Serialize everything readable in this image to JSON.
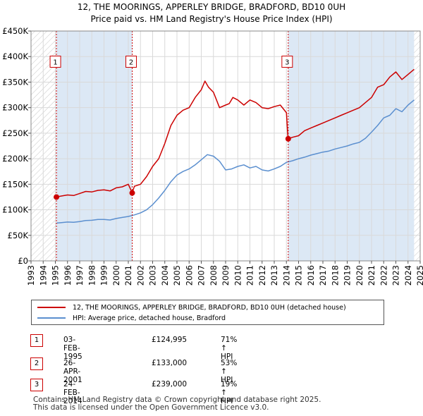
{
  "title_line1": "12, THE MOORINGS, APPERLEY BRIDGE, BRADFORD, BD10 0UH",
  "title_line2": "Price paid vs. HM Land Registry's House Price Index (HPI)",
  "legend": {
    "property_label": "12, THE MOORINGS, APPERLEY BRIDGE, BRADFORD, BD10 0UH (detached house)",
    "hpi_label": "HPI: Average price, detached house, Bradford"
  },
  "transactions": [
    {
      "num": "1",
      "date": "03-FEB-1995",
      "price": "£124,995",
      "hpi": "71% ↑ HPI"
    },
    {
      "num": "2",
      "date": "26-APR-2001",
      "price": "£133,000",
      "hpi": "53% ↑ HPI"
    },
    {
      "num": "3",
      "date": "24-FEB-2014",
      "price": "£239,000",
      "hpi": "19% ↑ HPI"
    }
  ],
  "footer_line1": "Contains HM Land Registry data © Crown copyright and database right 2025.",
  "footer_line2": "This data is licensed under the Open Government Licence v3.0.",
  "colors": {
    "property": "#cc0000",
    "hpi": "#5b8fcf",
    "shade": "#dce8f5",
    "grid": "#d9d9d9"
  },
  "chart_data": {
    "type": "line",
    "xlim": [
      1993,
      2025
    ],
    "ylim": [
      0,
      450000
    ],
    "y_ticks": [
      0,
      50000,
      100000,
      150000,
      200000,
      250000,
      300000,
      350000,
      400000,
      450000
    ],
    "y_tick_labels": [
      "£0",
      "£50K",
      "£100K",
      "£150K",
      "£200K",
      "£250K",
      "£300K",
      "£350K",
      "£400K",
      "£450K"
    ],
    "x_ticks": [
      1993,
      1994,
      1995,
      1996,
      1997,
      1998,
      1999,
      2000,
      2001,
      2002,
      2003,
      2004,
      2005,
      2006,
      2007,
      2008,
      2009,
      2010,
      2011,
      2012,
      2013,
      2014,
      2015,
      2016,
      2017,
      2018,
      2019,
      2020,
      2021,
      2022,
      2023,
      2024,
      2025
    ],
    "x_tick_labels": [
      "1993",
      "1994",
      "1995",
      "1996",
      "1997",
      "1998",
      "1999",
      "2000",
      "2001",
      "2002",
      "2003",
      "2004",
      "2005",
      "2006",
      "2007",
      "2008",
      "2009",
      "2010",
      "2011",
      "2012",
      "2013",
      "2014",
      "2015",
      "2016",
      "2017",
      "2018",
      "2019",
      "2020",
      "2021",
      "2022",
      "2023",
      "2024",
      "2025"
    ],
    "hatch_ranges": [
      [
        1993,
        1995.09
      ],
      [
        2024.5,
        2025
      ]
    ],
    "shade_ranges": [
      [
        1995.09,
        2001.32
      ],
      [
        2014.15,
        2024.5
      ]
    ],
    "series": [
      {
        "name": "12, THE MOORINGS, APPERLEY BRIDGE, BRADFORD, BD10 0UH (detached house)",
        "x": [
          1995.09,
          1995.5,
          1996,
          1996.5,
          1997,
          1997.5,
          1998,
          1998.5,
          1999,
          1999.5,
          2000,
          2000.5,
          2001,
          2001.32,
          2001.5,
          2002,
          2002.5,
          2003,
          2003.5,
          2004,
          2004.5,
          2005,
          2005.5,
          2006,
          2006.5,
          2007,
          2007.3,
          2007.6,
          2008,
          2008.5,
          2009,
          2009.3,
          2009.6,
          2010,
          2010.5,
          2011,
          2011.5,
          2012,
          2012.5,
          2013,
          2013.5,
          2014,
          2014.1,
          2014.15,
          2014.5,
          2015,
          2015.5,
          2016,
          2016.5,
          2017,
          2017.5,
          2018,
          2018.5,
          2019,
          2019.5,
          2020,
          2020.5,
          2021,
          2021.5,
          2022,
          2022.5,
          2023,
          2023.5,
          2024,
          2024.5
        ],
        "values": [
          124995,
          127000,
          129000,
          128000,
          132000,
          136000,
          135000,
          138000,
          139000,
          137000,
          143000,
          145000,
          150000,
          133000,
          146000,
          150000,
          165000,
          185000,
          200000,
          230000,
          265000,
          285000,
          295000,
          300000,
          320000,
          335000,
          352000,
          340000,
          330000,
          300000,
          305000,
          308000,
          320000,
          315000,
          305000,
          315000,
          310000,
          300000,
          298000,
          302000,
          305000,
          290000,
          250000,
          239000,
          242000,
          245000,
          255000,
          260000,
          265000,
          270000,
          275000,
          280000,
          285000,
          290000,
          295000,
          300000,
          310000,
          320000,
          340000,
          345000,
          360000,
          370000,
          355000,
          365000,
          375000
        ]
      },
      {
        "name": "HPI: Average price, detached house, Bradford",
        "x": [
          1995.09,
          1995.5,
          1996,
          1996.5,
          1997,
          1997.5,
          1998,
          1998.5,
          1999,
          1999.5,
          2000,
          2000.5,
          2001,
          2001.5,
          2002,
          2002.5,
          2003,
          2003.5,
          2004,
          2004.5,
          2005,
          2005.5,
          2006,
          2006.5,
          2007,
          2007.5,
          2008,
          2008.5,
          2009,
          2009.5,
          2010,
          2010.5,
          2011,
          2011.5,
          2012,
          2012.5,
          2013,
          2013.5,
          2014,
          2014.5,
          2015,
          2015.5,
          2016,
          2016.5,
          2017,
          2017.5,
          2018,
          2018.5,
          2019,
          2019.5,
          2020,
          2020.5,
          2021,
          2021.5,
          2022,
          2022.5,
          2023,
          2023.5,
          2024,
          2024.5
        ],
        "values": [
          74000,
          75000,
          76000,
          75500,
          77000,
          79000,
          79500,
          81000,
          81000,
          80000,
          83000,
          85000,
          87000,
          90000,
          94000,
          100000,
          110000,
          123000,
          138000,
          155000,
          168000,
          175000,
          180000,
          188000,
          198000,
          208000,
          205000,
          195000,
          178000,
          180000,
          185000,
          188000,
          182000,
          185000,
          178000,
          176000,
          180000,
          185000,
          193000,
          196000,
          200000,
          203000,
          207000,
          210000,
          213000,
          215000,
          219000,
          222000,
          225000,
          229000,
          232000,
          240000,
          252000,
          265000,
          280000,
          285000,
          298000,
          292000,
          305000,
          315000
        ]
      }
    ],
    "markers": [
      {
        "label": "1",
        "x": 1995.09,
        "y": 124995
      },
      {
        "label": "2",
        "x": 2001.32,
        "y": 133000
      },
      {
        "label": "3",
        "x": 2014.15,
        "y": 239000
      }
    ],
    "marker_box_value": 390000
  }
}
